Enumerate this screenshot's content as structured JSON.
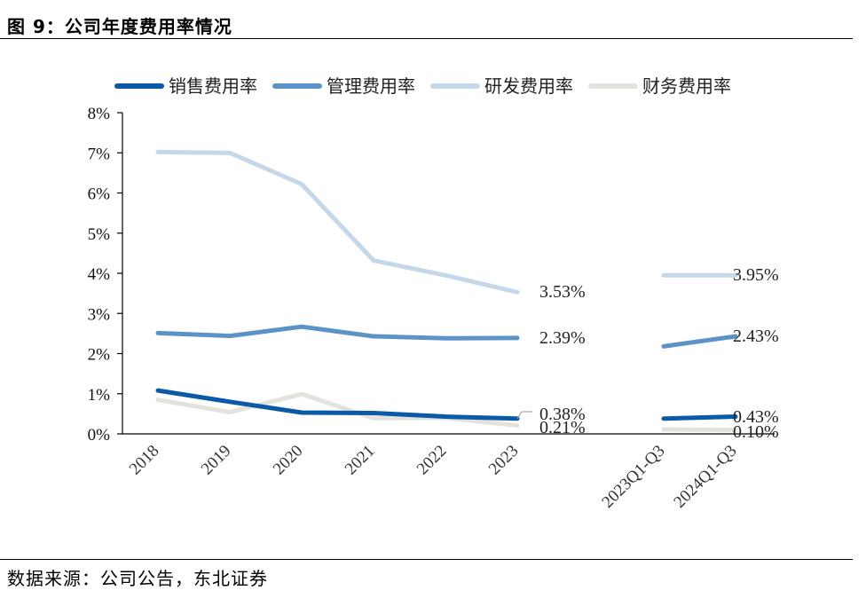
{
  "figure": {
    "title": "图 9：公司年度费用率情况",
    "source": "数据来源：公司公告，东北证券"
  },
  "chart_data": {
    "type": "line",
    "categories": [
      "2018",
      "2019",
      "2020",
      "2021",
      "2022",
      "2023",
      "2023Q1-Q3",
      "2024Q1-Q3"
    ],
    "ylim": [
      0,
      8
    ],
    "yticks": [
      "0%",
      "1%",
      "2%",
      "3%",
      "4%",
      "5%",
      "6%",
      "7%",
      "8%"
    ],
    "legend_position": "top",
    "grid": false,
    "series": [
      {
        "name": "销售费用率",
        "color": "#0B5AA8",
        "annual": [
          1.08,
          0.8,
          0.53,
          0.52,
          0.43,
          0.38
        ],
        "quarterly": [
          0.38,
          0.43
        ],
        "labels": [
          "0.38%",
          "0.43%"
        ]
      },
      {
        "name": "管理费用率",
        "color": "#5B93C9",
        "annual": [
          2.51,
          2.44,
          2.67,
          2.43,
          2.38,
          2.39
        ],
        "quarterly": [
          2.18,
          2.43
        ],
        "labels": [
          "2.39%",
          "2.43%"
        ]
      },
      {
        "name": "研发费用率",
        "color": "#C5D8EA",
        "annual": [
          7.02,
          7.0,
          6.22,
          4.32,
          3.95,
          3.53
        ],
        "quarterly": [
          3.95,
          3.95
        ],
        "labels": [
          "3.53%",
          "3.95%"
        ]
      },
      {
        "name": "财务费用率",
        "color": "#E4E2DD",
        "annual": [
          0.85,
          0.54,
          0.99,
          0.39,
          0.4,
          0.21
        ],
        "quarterly": [
          0.11,
          0.1
        ],
        "labels": [
          "0.21%",
          "0.10%"
        ]
      }
    ]
  }
}
